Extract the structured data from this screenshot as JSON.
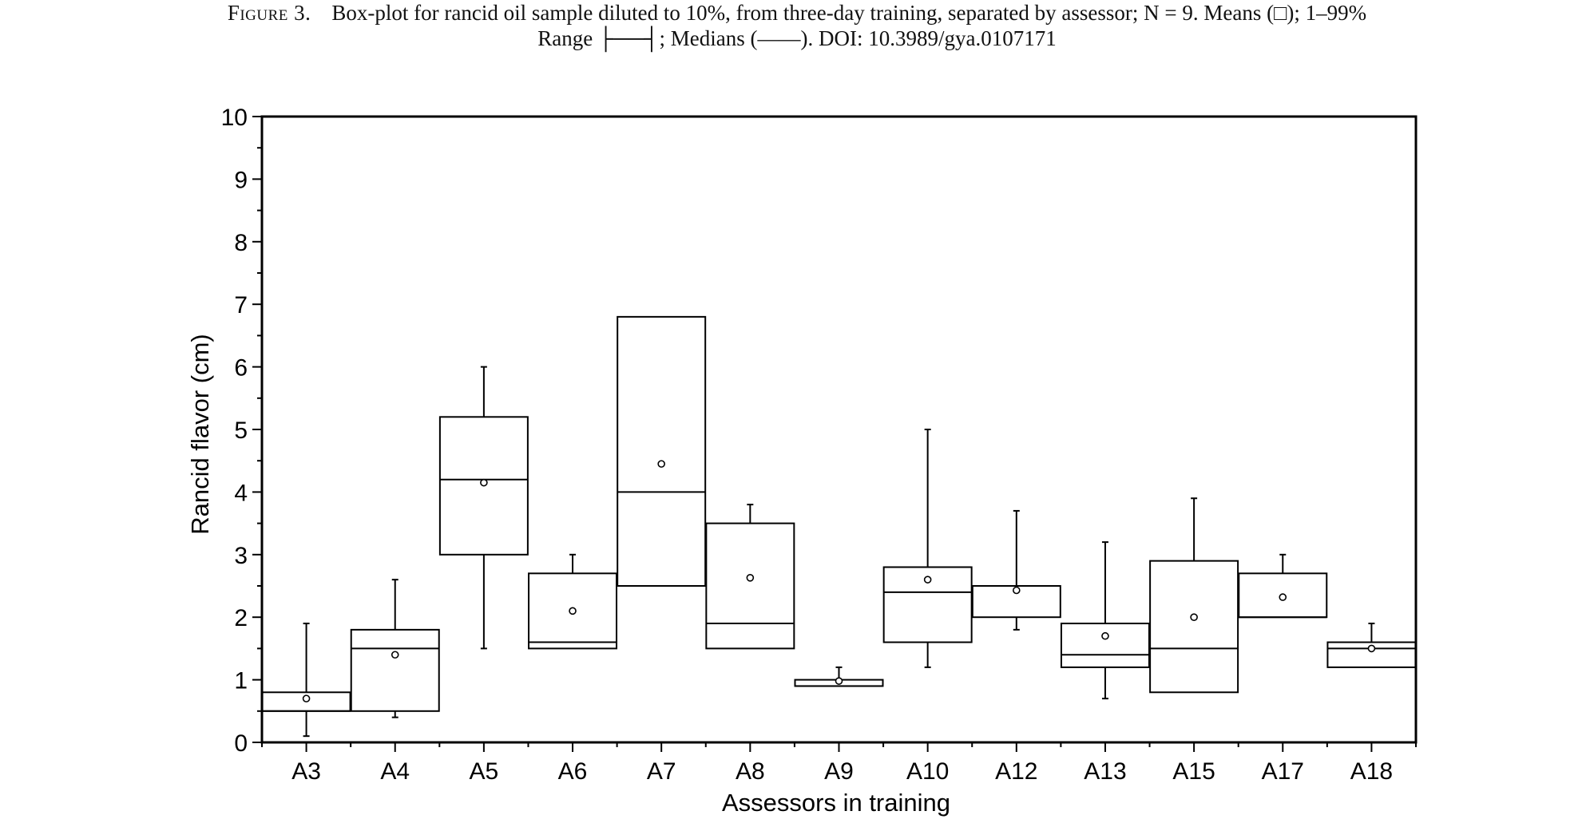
{
  "caption": {
    "label": "Figure 3.",
    "text_line1": "Box-plot for rancid oil sample diluted to 10%, from three-day training, separated by assessor; N = 9. Means (□); 1–99%",
    "text_line2_a": "Range",
    "range_symbol": "├──┤",
    "text_line2_b": "; Medians (——). DOI: 10.3989/gya.0107171"
  },
  "chart_data": {
    "type": "box",
    "xlabel": "Assessors in training",
    "ylabel": "Rancid flavor (cm)",
    "ylim": [
      0,
      10
    ],
    "yticks": [
      "0",
      "1",
      "2",
      "3",
      "4",
      "5",
      "6",
      "7",
      "8",
      "9",
      "10"
    ],
    "minor_ticks": true,
    "grid": false,
    "categories": [
      "A3",
      "A4",
      "A5",
      "A6",
      "A7",
      "A8",
      "A9",
      "A10",
      "A12",
      "A13",
      "A15",
      "A17",
      "A18"
    ],
    "boxes": [
      {
        "name": "A3",
        "min": 0.1,
        "q1": 0.5,
        "median": 0.5,
        "q3": 0.8,
        "max": 1.9,
        "mean": 0.7
      },
      {
        "name": "A4",
        "min": 0.4,
        "q1": 0.5,
        "median": 1.5,
        "q3": 1.8,
        "max": 2.6,
        "mean": 1.4
      },
      {
        "name": "A5",
        "min": 1.5,
        "q1": 3.0,
        "median": 4.2,
        "q3": 5.2,
        "max": 6.0,
        "mean": 4.15
      },
      {
        "name": "A6",
        "min": 1.5,
        "q1": 1.5,
        "median": 1.6,
        "q3": 2.7,
        "max": 3.0,
        "mean": 2.1
      },
      {
        "name": "A7",
        "min": 2.5,
        "q1": 2.5,
        "median": 4.0,
        "q3": 6.8,
        "max": 6.8,
        "mean": 4.45
      },
      {
        "name": "A8",
        "min": 1.5,
        "q1": 1.5,
        "median": 1.9,
        "q3": 3.5,
        "max": 3.8,
        "mean": 2.63
      },
      {
        "name": "A9",
        "min": 0.9,
        "q1": 0.9,
        "median": 0.9,
        "q3": 1.0,
        "max": 1.2,
        "mean": 0.98
      },
      {
        "name": "A10",
        "min": 1.2,
        "q1": 1.6,
        "median": 2.4,
        "q3": 2.8,
        "max": 5.0,
        "mean": 2.6
      },
      {
        "name": "A12",
        "min": 1.8,
        "q1": 2.0,
        "median": 2.5,
        "q3": 2.5,
        "max": 3.7,
        "mean": 2.43
      },
      {
        "name": "A13",
        "min": 0.7,
        "q1": 1.2,
        "median": 1.4,
        "q3": 1.9,
        "max": 3.2,
        "mean": 1.7
      },
      {
        "name": "A15",
        "min": 0.8,
        "q1": 0.8,
        "median": 1.5,
        "q3": 2.9,
        "max": 3.9,
        "mean": 2.0
      },
      {
        "name": "A17",
        "min": 2.0,
        "q1": 2.0,
        "median": 2.0,
        "q3": 2.7,
        "max": 3.0,
        "mean": 2.32
      },
      {
        "name": "A18",
        "min": 1.2,
        "q1": 1.2,
        "median": 1.5,
        "q3": 1.6,
        "max": 1.9,
        "mean": 1.5
      }
    ]
  },
  "colors": {
    "stroke": "#000000",
    "background": "#ffffff"
  }
}
